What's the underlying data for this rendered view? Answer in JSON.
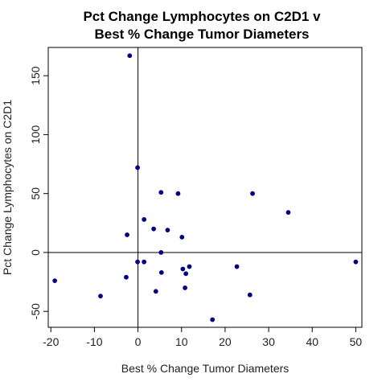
{
  "chart_data": {
    "type": "scatter",
    "title": "Pct Change Lymphocytes on C2D1 v",
    "subtitle": "Best % Change Tumor Diameters",
    "xlabel": "Best % Change Tumor Diameters",
    "ylabel": "Pct Change Lymphocytes on C2D1",
    "xlim": [
      -20.6,
      51.4
    ],
    "ylim": [
      -63.5,
      174
    ],
    "x_ticks": [
      -20,
      -10,
      0,
      10,
      20,
      30,
      40,
      50
    ],
    "y_ticks": [
      -50,
      0,
      50,
      100,
      150
    ],
    "reference_lines": {
      "x": 0,
      "y": 0
    },
    "grid": false,
    "point_color": "#000080",
    "points": [
      {
        "x": -1.9,
        "y": 167
      },
      {
        "x": -0.1,
        "y": 72
      },
      {
        "x": 5.3,
        "y": 51
      },
      {
        "x": 9.2,
        "y": 50
      },
      {
        "x": 26.3,
        "y": 50
      },
      {
        "x": 34.5,
        "y": 34
      },
      {
        "x": 1.4,
        "y": 28
      },
      {
        "x": 3.6,
        "y": 20
      },
      {
        "x": 6.8,
        "y": 19
      },
      {
        "x": -2.5,
        "y": 15
      },
      {
        "x": 10.1,
        "y": 13
      },
      {
        "x": 5.3,
        "y": 0
      },
      {
        "x": -0.1,
        "y": -8
      },
      {
        "x": 1.4,
        "y": -8
      },
      {
        "x": 10.3,
        "y": -14
      },
      {
        "x": 11.8,
        "y": -12
      },
      {
        "x": 22.7,
        "y": -12
      },
      {
        "x": 50.0,
        "y": -8
      },
      {
        "x": 5.4,
        "y": -17
      },
      {
        "x": 11.0,
        "y": -18
      },
      {
        "x": -2.7,
        "y": -21
      },
      {
        "x": -19.1,
        "y": -24
      },
      {
        "x": 10.8,
        "y": -30
      },
      {
        "x": 4.1,
        "y": -33
      },
      {
        "x": -8.6,
        "y": -37
      },
      {
        "x": 25.7,
        "y": -36
      },
      {
        "x": 17.1,
        "y": -57
      }
    ]
  }
}
